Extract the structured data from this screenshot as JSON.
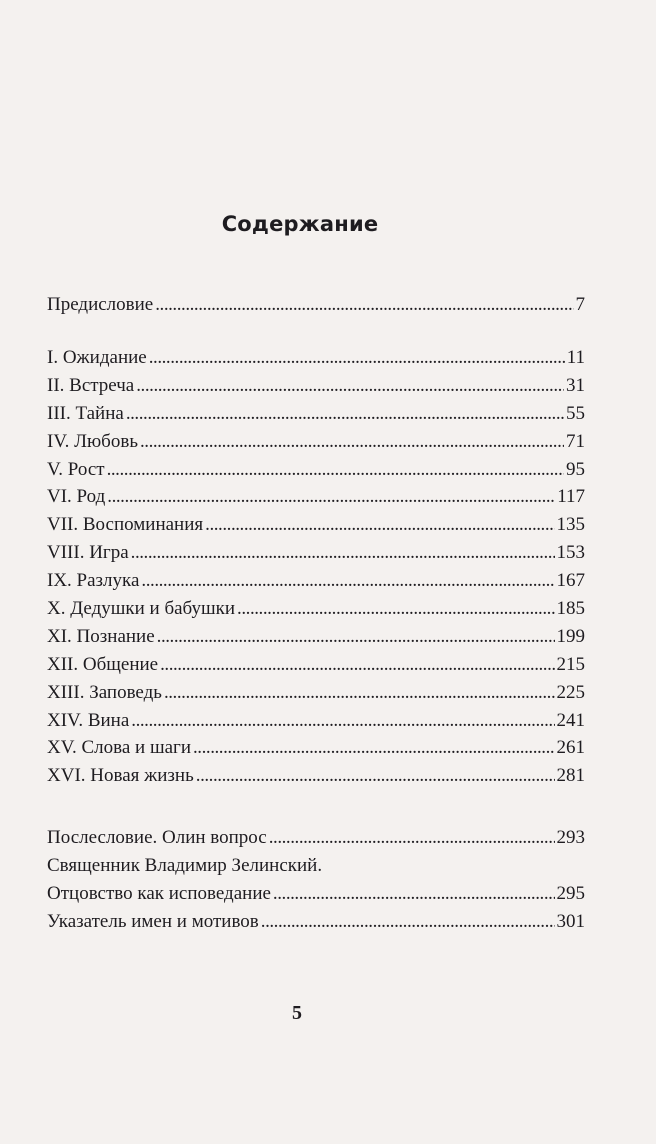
{
  "title": "Содержание",
  "preface": {
    "label": "Предисловие",
    "page": "7"
  },
  "chapters": [
    {
      "label": "I. Ожидание",
      "page": "11"
    },
    {
      "label": "II. Встреча",
      "page": "31"
    },
    {
      "label": "III. Тайна",
      "page": "55"
    },
    {
      "label": "IV. Любовь",
      "page": "71"
    },
    {
      "label": "V. Рост",
      "page": "95"
    },
    {
      "label": "VI. Род",
      "page": "117"
    },
    {
      "label": "VII. Воспоминания",
      "page": "135"
    },
    {
      "label": "VIII. Игра",
      "page": "153"
    },
    {
      "label": "IX. Разлука",
      "page": "167"
    },
    {
      "label": "X. Дедушки и бабушки",
      "page": "185"
    },
    {
      "label": "XI. Познание",
      "page": "199"
    },
    {
      "label": "XII. Общение",
      "page": "215"
    },
    {
      "label": "XIII. Заповедь",
      "page": "225"
    },
    {
      "label": "XIV. Вина",
      "page": "241"
    },
    {
      "label": "XV. Слова и шаги",
      "page": "261"
    },
    {
      "label": "XVI. Новая жизнь",
      "page": "281"
    }
  ],
  "back_matter": [
    {
      "label": "Послесловие. Олин вопрос",
      "page": "293"
    },
    {
      "label": "Священник Владимир Зелинский.",
      "page": ""
    },
    {
      "label": "Отцовство как исповедание",
      "page": "295"
    },
    {
      "label": "Указатель имен и мотивов",
      "page": "301"
    }
  ],
  "page_number": "5"
}
